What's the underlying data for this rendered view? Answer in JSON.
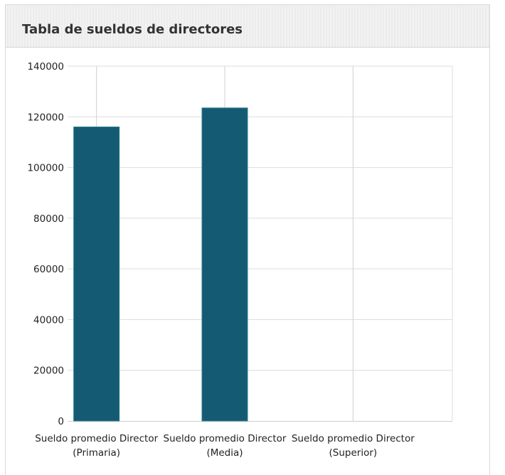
{
  "panel": {
    "title": "Tabla de sueldos de directores"
  },
  "chart_data": {
    "type": "bar",
    "title": "",
    "xlabel": "",
    "ylabel": "",
    "ylim": [
      0,
      140000
    ],
    "yticks": [
      0,
      20000,
      40000,
      60000,
      80000,
      100000,
      120000,
      140000
    ],
    "grid": true,
    "legend": "none",
    "bar_color": "#135a72",
    "categories": [
      [
        "Sueldo promedio Director",
        "(Primaria)"
      ],
      [
        "Sueldo promedio Director",
        "(Media)"
      ],
      [
        "Sueldo promedio Director",
        "(Superior)"
      ]
    ],
    "values": [
      116000,
      123500,
      0
    ]
  }
}
